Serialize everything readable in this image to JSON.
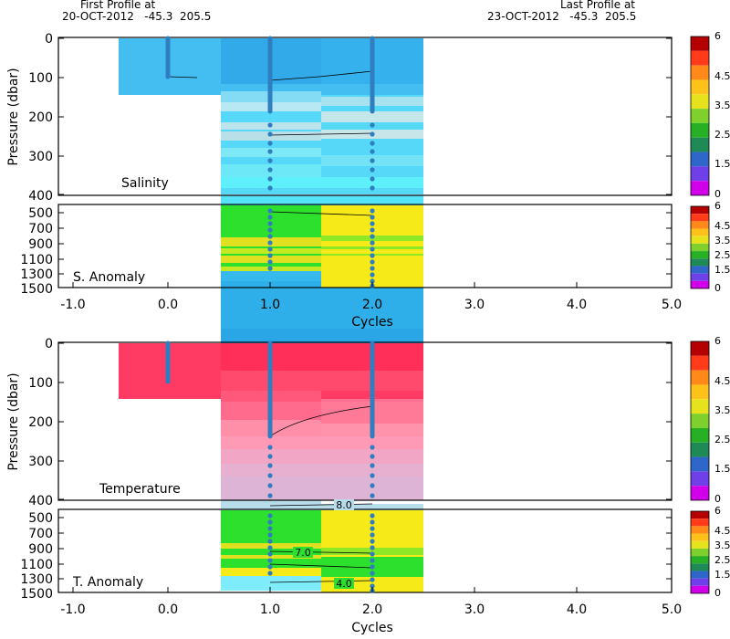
{
  "header": {
    "first_label": "First Profile at",
    "first_value": "20-OCT-2012   -45.3  205.5",
    "last_label": "Last Profile at",
    "last_value": "23-OCT-2012   -45.3  205.5"
  },
  "chart_data": [
    {
      "type": "heatmap",
      "name": "salinity_profile",
      "panel_label": "Salinity",
      "ylabel": "Pressure (dbar)",
      "xlim": [
        -1.0,
        5.0
      ],
      "ylim": [
        400,
        0
      ],
      "yticks": [
        "0",
        "100",
        "200",
        "300",
        "400"
      ],
      "profiles": [
        {
          "cycle": 0.0,
          "max_pressure": 100
        },
        {
          "cycle": 1.0,
          "max_pressure": 400
        },
        {
          "cycle": 2.0,
          "max_pressure": 400
        }
      ],
      "contours": [
        {
          "points": [
            [
              0.0,
              102
            ],
            [
              0.3,
              102
            ]
          ]
        },
        {
          "points": [
            [
              1.0,
              108
            ],
            [
              1.5,
              104
            ],
            [
              2.0,
              98
            ]
          ]
        },
        {
          "points": [
            [
              1.0,
              252
            ],
            [
              2.0,
              247
            ]
          ]
        }
      ],
      "flagged": [
        {
          "cycle": 0.0,
          "from": 0,
          "to": 35,
          "color": "#e41a1c"
        }
      ],
      "colorbar": {
        "min": 0,
        "max": 6,
        "labels": [
          "6",
          "4.5",
          "3.5",
          "2.5",
          "1.5",
          "0"
        ]
      }
    },
    {
      "type": "heatmap",
      "name": "salinity_anomaly",
      "panel_label": "S. Anomaly",
      "xlabel": "Cycles",
      "xticks": [
        "-1.0",
        "0.0",
        "1.0",
        "2.0",
        "3.0",
        "4.0",
        "5.0"
      ],
      "yticks": [
        "500",
        "700",
        "900",
        "1100",
        "1300",
        "1500"
      ],
      "ylim": [
        1500,
        400
      ],
      "colorbar": {
        "min": 0,
        "max": 6,
        "labels": [
          "6",
          "4.5",
          "3.5",
          "2.5",
          "1.5",
          "0"
        ]
      }
    },
    {
      "type": "heatmap",
      "name": "temperature_profile",
      "panel_label": "Temperature",
      "ylabel": "Pressure (dbar)",
      "xlim": [
        -1.0,
        5.0
      ],
      "ylim": [
        400,
        0
      ],
      "yticks": [
        "0",
        "100",
        "200",
        "300",
        "400"
      ],
      "contour_labels": [
        {
          "text": "8.0",
          "cycle": 1.75,
          "pressure": 322
        }
      ],
      "contours": [
        {
          "points": [
            [
              1.0,
              200
            ],
            [
              1.3,
              180
            ],
            [
              1.7,
              163
            ],
            [
              2.0,
              155
            ]
          ]
        },
        {
          "points": [
            [
              1.0,
              322
            ],
            [
              2.0,
              318
            ]
          ]
        }
      ],
      "colorbar": {
        "min": 0,
        "max": 6,
        "labels": [
          "6",
          "4.5",
          "3.5",
          "2.5",
          "1.5",
          "0"
        ]
      }
    },
    {
      "type": "heatmap",
      "name": "temperature_anomaly",
      "panel_label": "T. Anomaly",
      "xlabel": "Cycles",
      "xticks": [
        "-1.0",
        "0.0",
        "1.0",
        "2.0",
        "3.0",
        "4.0",
        "5.0"
      ],
      "yticks": [
        "500",
        "700",
        "900",
        "1100",
        "1300",
        "1500"
      ],
      "ylim": [
        1500,
        400
      ],
      "contour_labels": [
        {
          "text": "7.0",
          "cycle": 1.35,
          "pressure": 610
        },
        {
          "text": "4.0",
          "cycle": 1.75,
          "pressure": 1190
        }
      ],
      "colorbar": {
        "min": 0,
        "max": 6,
        "labels": [
          "6",
          "4.5",
          "3.5",
          "2.5",
          "1.5",
          "0"
        ]
      }
    }
  ]
}
